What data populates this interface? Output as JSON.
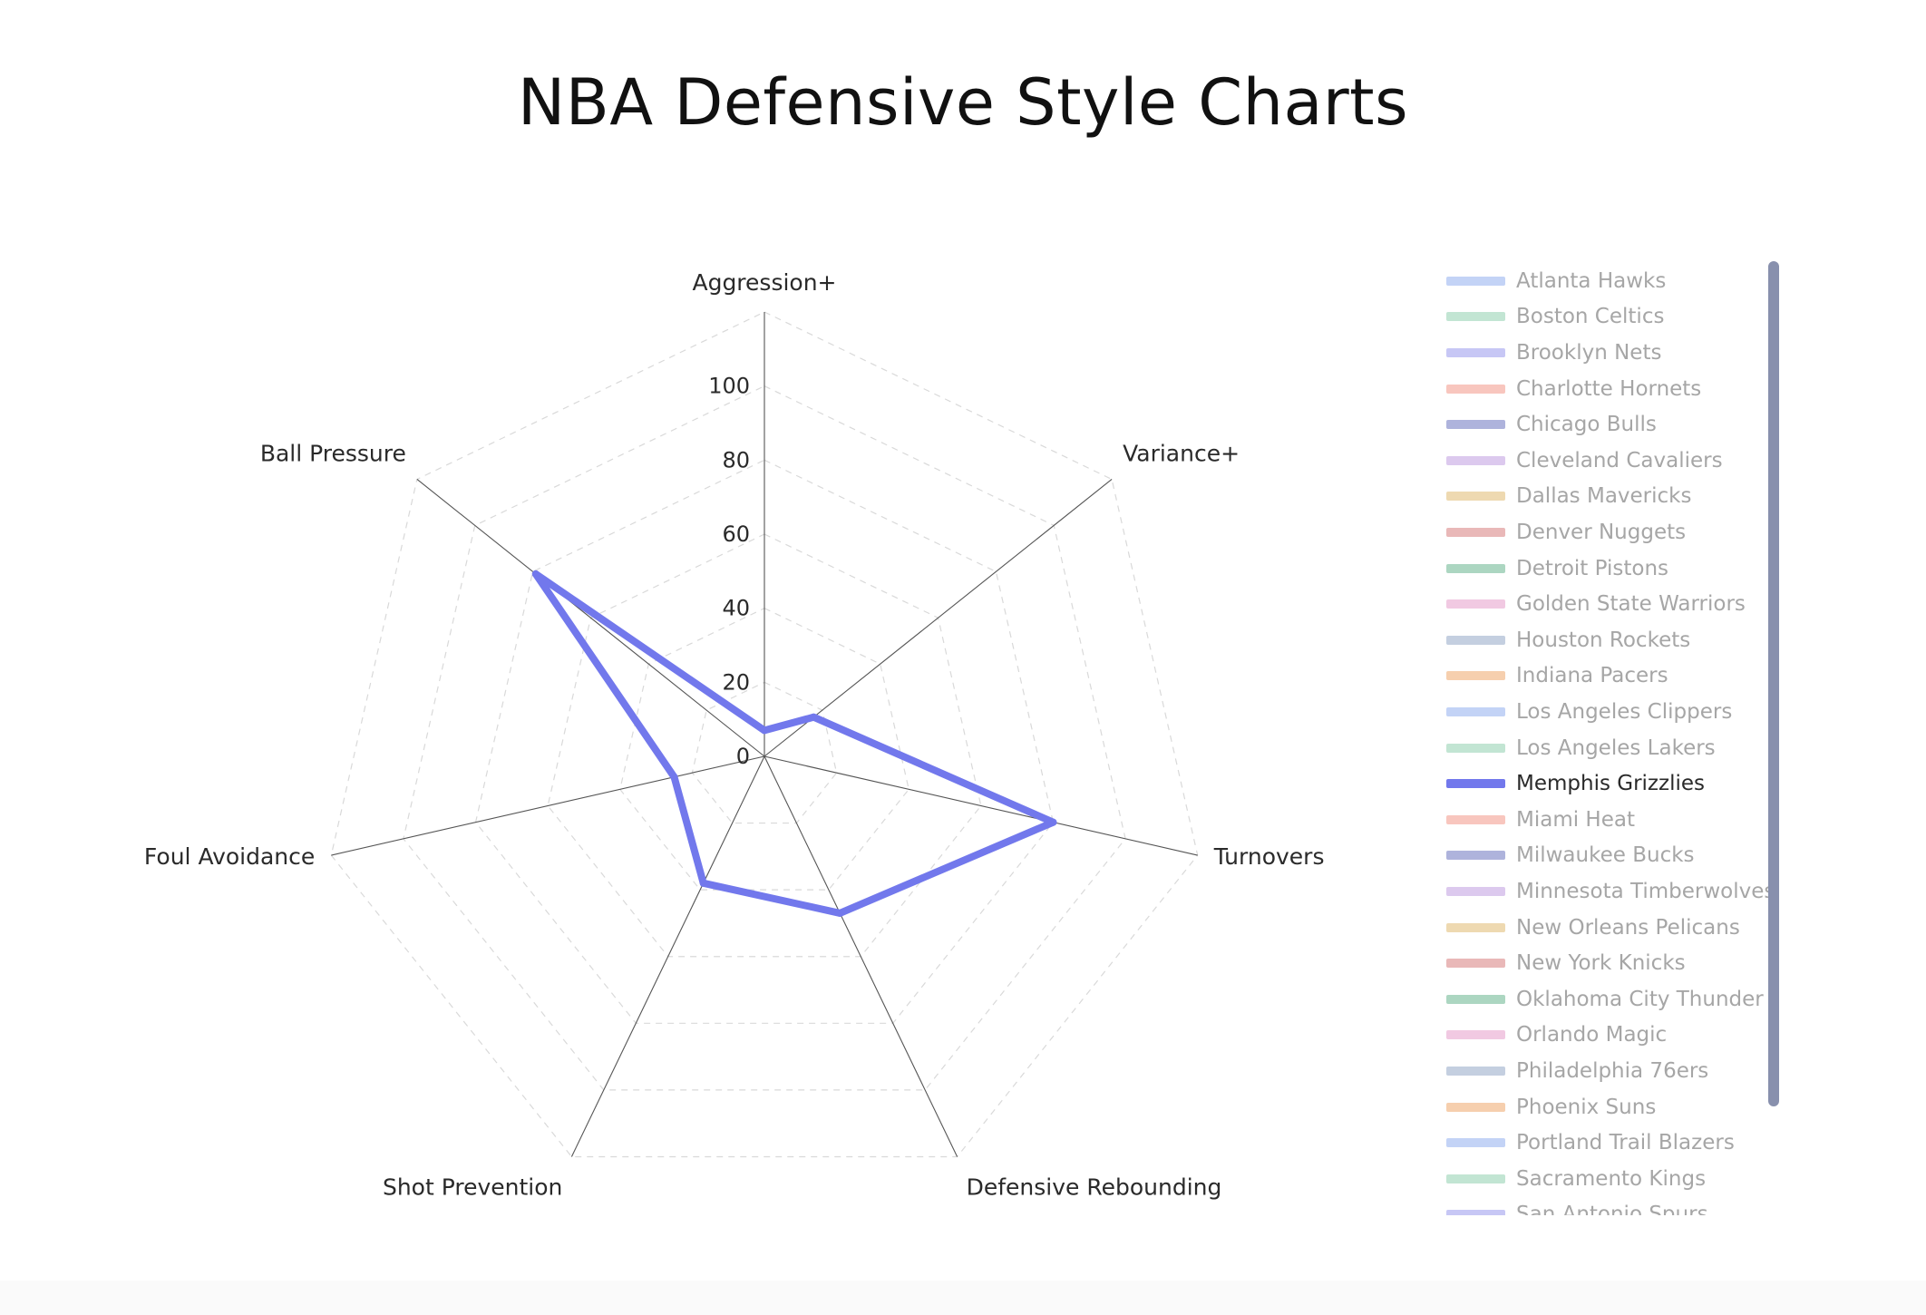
{
  "title": "NBA Defensive Style Charts",
  "chart_data": {
    "type": "radar",
    "title": "NBA Defensive Style Charts",
    "axes": [
      "Aggression+",
      "Variance+",
      "Turnovers",
      "Defensive Rebounding",
      "Shot Prevention",
      "Foul Avoidance",
      "Ball Pressure"
    ],
    "rlim": [
      0,
      120
    ],
    "radial_ticks": [
      0,
      20,
      40,
      60,
      80,
      100
    ],
    "grid": true,
    "legend_position": "right",
    "highlighted_series": "Memphis Grizzlies",
    "series": [
      {
        "name": "Memphis Grizzlies",
        "color": "#7278ec",
        "values": [
          7,
          17,
          80,
          47,
          38,
          25,
          79
        ]
      }
    ]
  },
  "legend": {
    "items": [
      {
        "label": "Atlanta Hawks",
        "color": "#c3d3f6",
        "active": false
      },
      {
        "label": "Boston Celtics",
        "color": "#c2e5d3",
        "active": false
      },
      {
        "label": "Brooklyn Nets",
        "color": "#c7c7f5",
        "active": false
      },
      {
        "label": "Charlotte Hornets",
        "color": "#f8c6be",
        "active": false
      },
      {
        "label": "Chicago Bulls",
        "color": "#aeb3dc",
        "active": false
      },
      {
        "label": "Cleveland Cavaliers",
        "color": "#dcc9ee",
        "active": false
      },
      {
        "label": "Dallas Mavericks",
        "color": "#eed9b1",
        "active": false
      },
      {
        "label": "Denver Nuggets",
        "color": "#e9b8b8",
        "active": false
      },
      {
        "label": "Detroit Pistons",
        "color": "#acd6c1",
        "active": false
      },
      {
        "label": "Golden State Warriors",
        "color": "#f1c9e2",
        "active": false
      },
      {
        "label": "Houston Rockets",
        "color": "#c4cfe0",
        "active": false
      },
      {
        "label": "Indiana Pacers",
        "color": "#f6cfae",
        "active": false
      },
      {
        "label": "Los Angeles Clippers",
        "color": "#c3d3f6",
        "active": false
      },
      {
        "label": "Los Angeles Lakers",
        "color": "#c2e5d3",
        "active": false
      },
      {
        "label": "Memphis Grizzlies",
        "color": "#7278ec",
        "active": true
      },
      {
        "label": "Miami Heat",
        "color": "#f8c6be",
        "active": false
      },
      {
        "label": "Milwaukee Bucks",
        "color": "#aeb3dc",
        "active": false
      },
      {
        "label": "Minnesota Timberwolves",
        "color": "#dcc9ee",
        "active": false
      },
      {
        "label": "New Orleans Pelicans",
        "color": "#eed9b1",
        "active": false
      },
      {
        "label": "New York Knicks",
        "color": "#e9b8b8",
        "active": false
      },
      {
        "label": "Oklahoma City Thunder",
        "color": "#acd6c1",
        "active": false
      },
      {
        "label": "Orlando Magic",
        "color": "#f1c9e2",
        "active": false
      },
      {
        "label": "Philadelphia 76ers",
        "color": "#c4cfe0",
        "active": false
      },
      {
        "label": "Phoenix Suns",
        "color": "#f6cfae",
        "active": false
      },
      {
        "label": "Portland Trail Blazers",
        "color": "#c3d3f6",
        "active": false
      },
      {
        "label": "Sacramento Kings",
        "color": "#c2e5d3",
        "active": false
      },
      {
        "label": "San Antonio Spurs",
        "color": "#c7c7f5",
        "active": false
      }
    ]
  }
}
